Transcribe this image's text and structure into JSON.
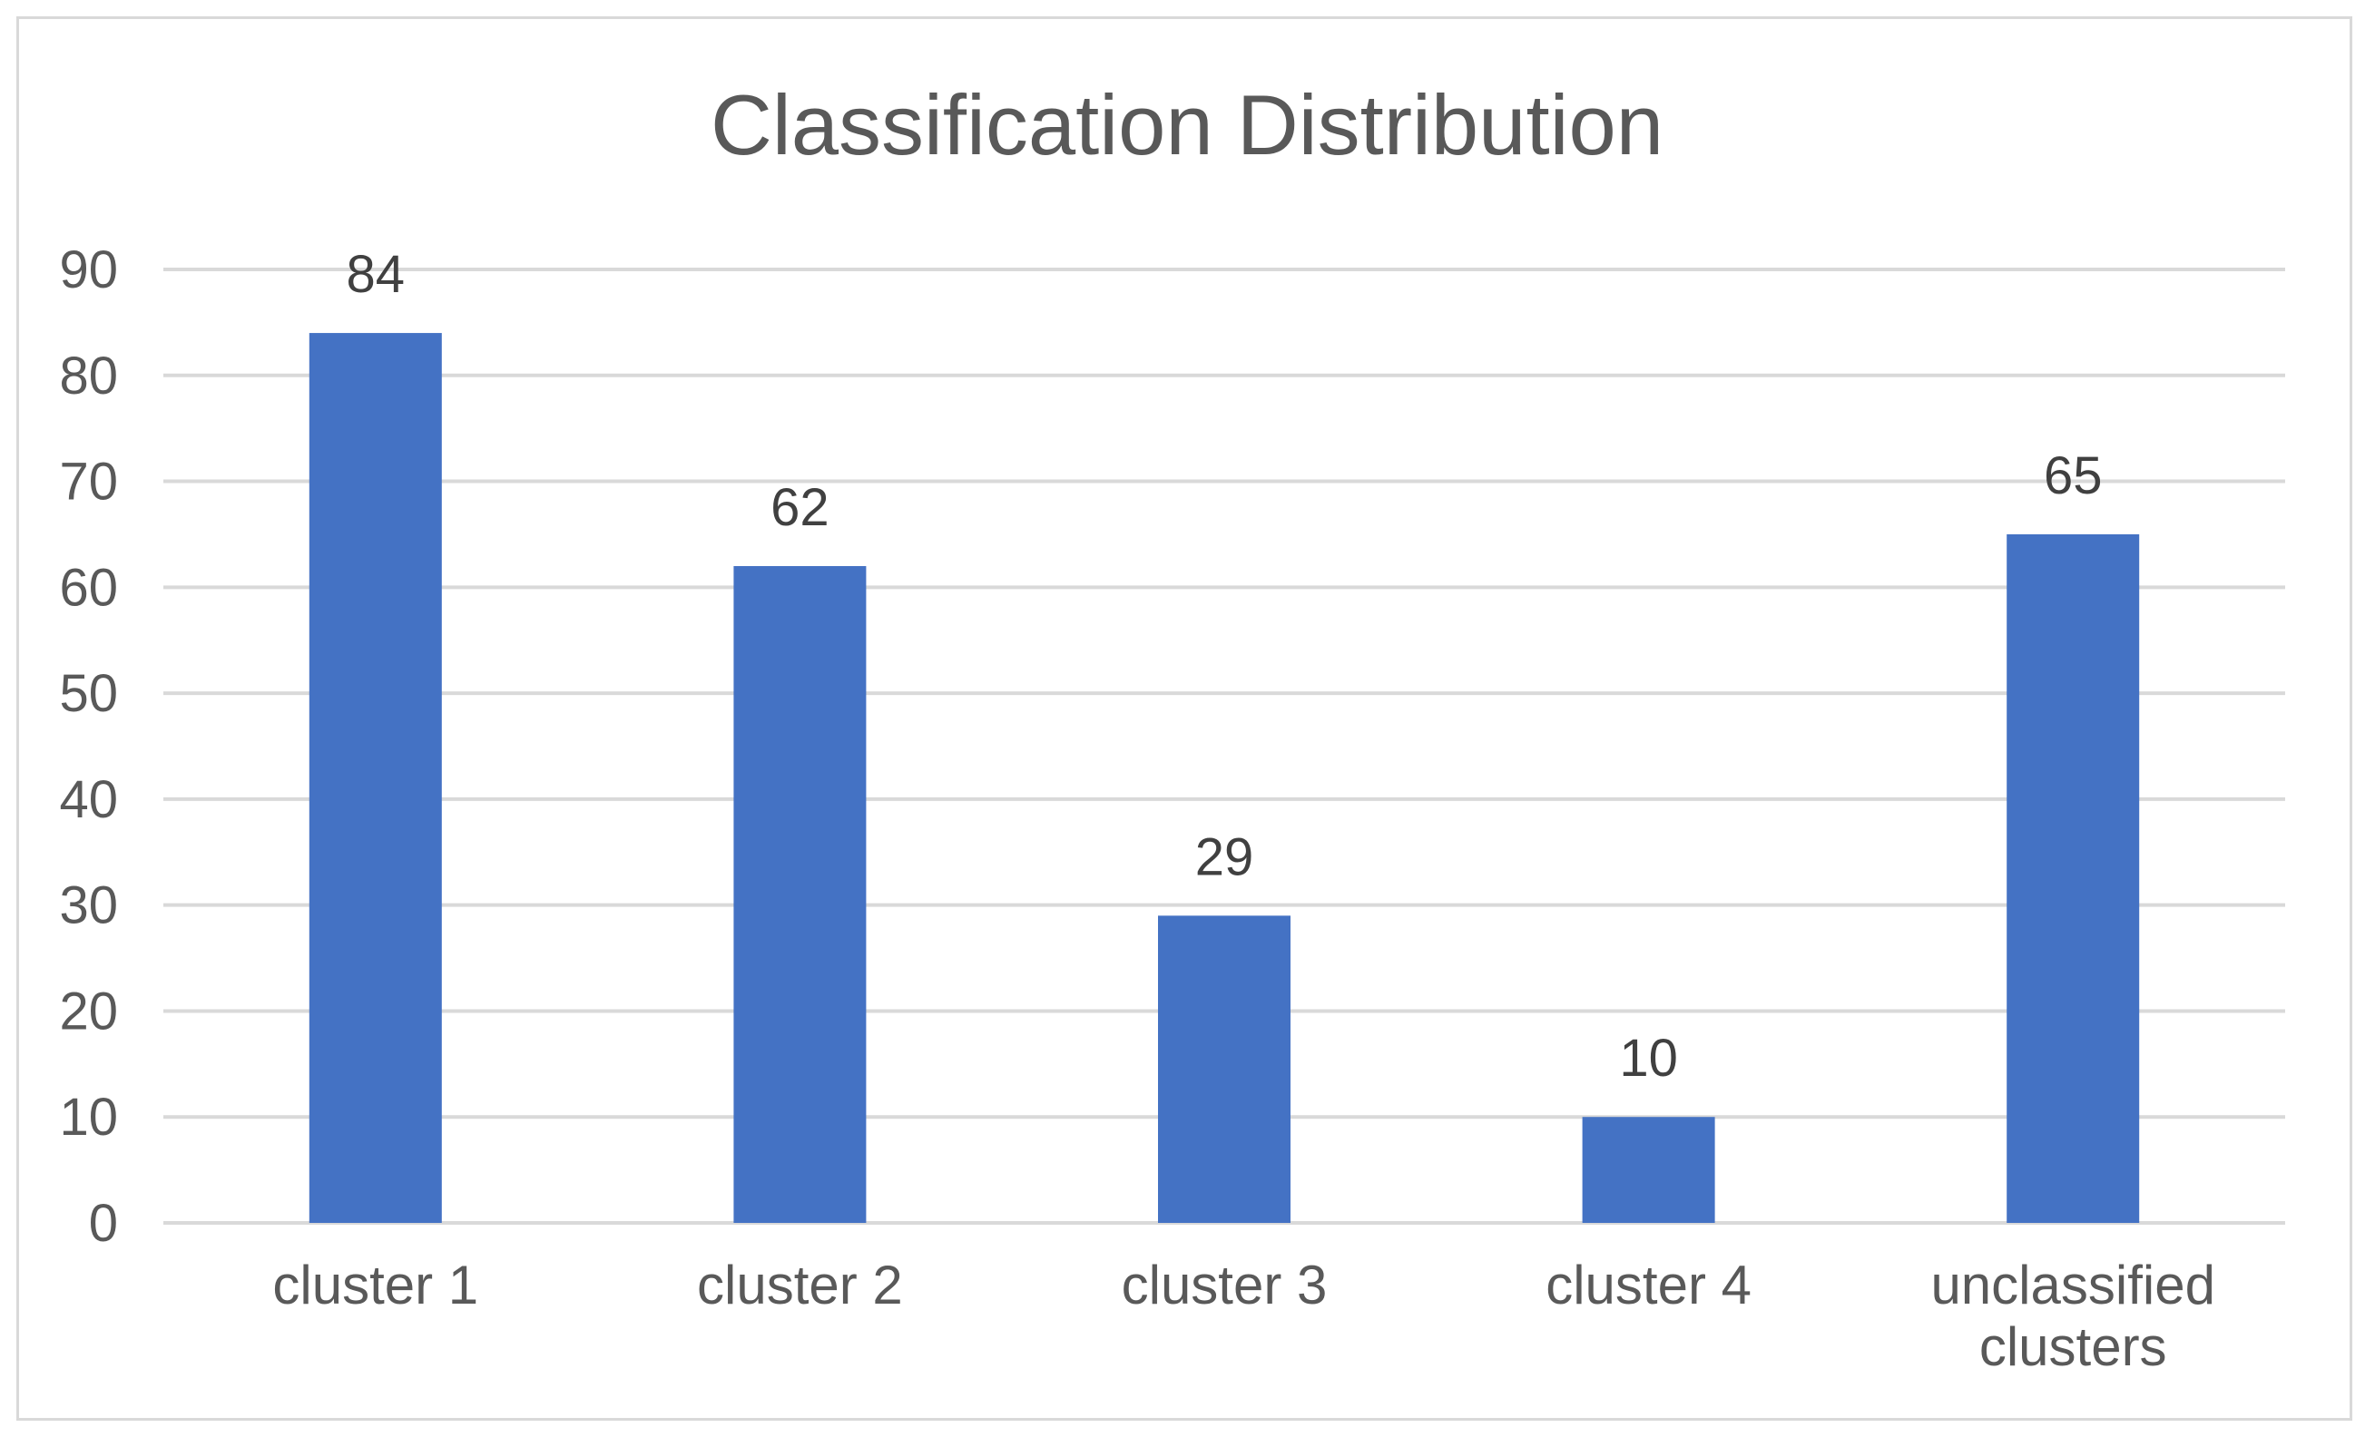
{
  "chart_data": {
    "type": "bar",
    "title": "Classification Distribution",
    "xlabel": "",
    "ylabel": "",
    "categories": [
      [
        "cluster 1"
      ],
      [
        "cluster 2"
      ],
      [
        "cluster 3"
      ],
      [
        "cluster 4"
      ],
      [
        "unclassified",
        "clusters"
      ]
    ],
    "values": [
      84,
      62,
      29,
      10,
      65
    ],
    "ylim": [
      0,
      90
    ],
    "yticks": [
      0,
      10,
      20,
      30,
      40,
      50,
      60,
      70,
      80,
      90
    ],
    "data_labels": true,
    "grid": true,
    "legend": "none",
    "bar_color": "#4472C4",
    "gridline_color": "#d9d9d9"
  }
}
